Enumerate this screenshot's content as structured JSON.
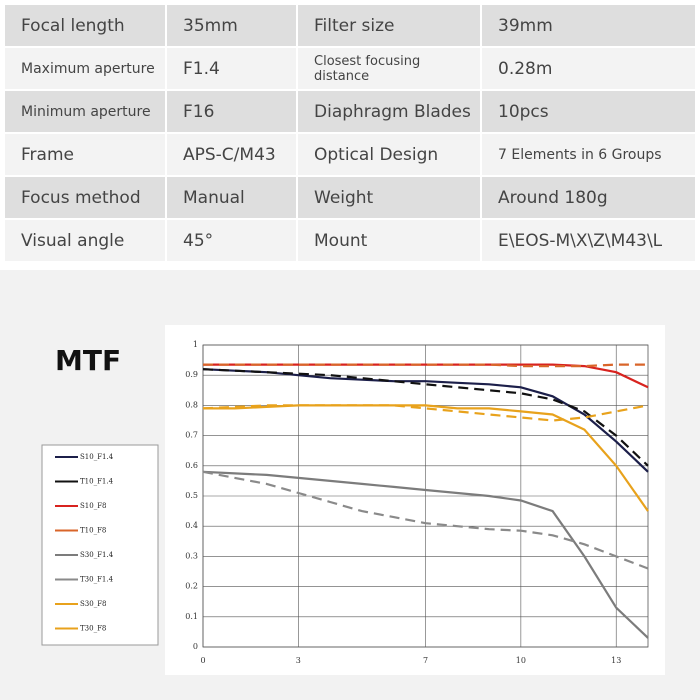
{
  "table": {
    "rows": [
      [
        "Focal length",
        "35mm",
        "Filter size",
        "39mm"
      ],
      [
        "Maximum aperture",
        "F1.4",
        "Closest focusing distance",
        "0.28m"
      ],
      [
        "Minimum aperture",
        "F16",
        "Diaphragm Blades",
        "10pcs"
      ],
      [
        "Frame",
        "APS-C/M43",
        "Optical Design",
        "7 Elements in 6 Groups"
      ],
      [
        "Focus method",
        "Manual",
        "Weight",
        "Around 180g"
      ],
      [
        "Visual angle",
        "45°",
        "Mount",
        "E\\EOS-M\\X\\Z\\M43\\L"
      ]
    ]
  },
  "chart_data": {
    "type": "line",
    "title": "MTF",
    "x": [
      0,
      1,
      2,
      3,
      4,
      5,
      6,
      7,
      8,
      9,
      10,
      11,
      12,
      13,
      14
    ],
    "xlim": [
      0,
      14
    ],
    "xticks": [
      0,
      3,
      7,
      10,
      13
    ],
    "ylim": [
      0,
      1
    ],
    "yticks": [
      0,
      0.1,
      0.2,
      0.3,
      0.4,
      0.5,
      0.6,
      0.7,
      0.8,
      0.9,
      1
    ],
    "grid": true,
    "series": [
      {
        "name": "S10_F1.4",
        "color": "#1c1f4a",
        "dashed": false,
        "values": [
          0.92,
          0.915,
          0.91,
          0.9,
          0.89,
          0.885,
          0.88,
          0.88,
          0.875,
          0.87,
          0.86,
          0.83,
          0.77,
          0.68,
          0.58
        ]
      },
      {
        "name": "T10_F1.4",
        "color": "#111111",
        "dashed": true,
        "values": [
          0.92,
          0.915,
          0.91,
          0.905,
          0.9,
          0.89,
          0.88,
          0.87,
          0.86,
          0.85,
          0.84,
          0.82,
          0.78,
          0.7,
          0.6
        ]
      },
      {
        "name": "S10_F8",
        "color": "#d8231f",
        "dashed": false,
        "values": [
          0.935,
          0.935,
          0.935,
          0.935,
          0.935,
          0.935,
          0.935,
          0.935,
          0.935,
          0.935,
          0.935,
          0.935,
          0.93,
          0.91,
          0.86
        ]
      },
      {
        "name": "T10_F8",
        "color": "#d9652a",
        "dashed": true,
        "values": [
          0.935,
          0.935,
          0.935,
          0.935,
          0.935,
          0.935,
          0.935,
          0.935,
          0.935,
          0.935,
          0.93,
          0.93,
          0.93,
          0.935,
          0.935
        ]
      },
      {
        "name": "S30_F1.4",
        "color": "#7c7c7c",
        "dashed": false,
        "values": [
          0.58,
          0.575,
          0.57,
          0.56,
          0.55,
          0.54,
          0.53,
          0.52,
          0.51,
          0.5,
          0.485,
          0.45,
          0.3,
          0.13,
          0.03
        ]
      },
      {
        "name": "T30_F1.4",
        "color": "#8a8a8a",
        "dashed": true,
        "values": [
          0.58,
          0.56,
          0.54,
          0.51,
          0.48,
          0.45,
          0.43,
          0.41,
          0.4,
          0.39,
          0.385,
          0.37,
          0.34,
          0.3,
          0.26
        ]
      },
      {
        "name": "S30_F8",
        "color": "#e8a21c",
        "dashed": false,
        "values": [
          0.79,
          0.79,
          0.795,
          0.8,
          0.8,
          0.8,
          0.8,
          0.8,
          0.79,
          0.79,
          0.78,
          0.77,
          0.72,
          0.6,
          0.45
        ]
      },
      {
        "name": "T30_F8",
        "color": "#e8a21c",
        "dashed": true,
        "values": [
          0.79,
          0.795,
          0.8,
          0.8,
          0.8,
          0.8,
          0.8,
          0.79,
          0.78,
          0.77,
          0.76,
          0.75,
          0.76,
          0.78,
          0.8
        ]
      }
    ]
  }
}
